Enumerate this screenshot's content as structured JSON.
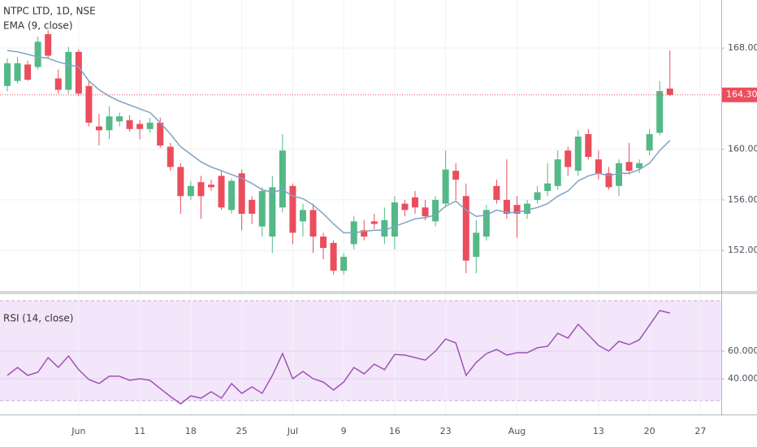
{
  "chart_data": [
    {
      "type": "candlestick",
      "title": "NTPC LTD, 1D, NSE",
      "categories": [
        null,
        null,
        null,
        null,
        null,
        null,
        null,
        "Jun",
        null,
        null,
        null,
        null,
        null,
        "11",
        null,
        null,
        null,
        null,
        "18",
        null,
        null,
        null,
        null,
        "25",
        null,
        null,
        null,
        null,
        "Jul",
        null,
        null,
        null,
        null,
        "9",
        null,
        null,
        null,
        null,
        "16",
        null,
        null,
        null,
        null,
        "23",
        null,
        null,
        null,
        null,
        null,
        null,
        "Aug",
        null,
        null,
        null,
        null,
        null,
        null,
        null,
        "13",
        null,
        null,
        null,
        null,
        "20",
        null,
        null,
        null,
        null,
        "27"
      ],
      "open": [
        165.0,
        165.4,
        166.7,
        166.5,
        169.1,
        165.6,
        164.7,
        167.7,
        165.0,
        161.8,
        161.5,
        162.2,
        162.3,
        162.0,
        161.6,
        162.1,
        160.2,
        158.6,
        156.3,
        157.4,
        157.2,
        157.9,
        155.2,
        158.1,
        156.0,
        153.9,
        153.1,
        155.4,
        157.1,
        154.3,
        155.2,
        153.1,
        152.6,
        150.4,
        152.5,
        153.6,
        154.3,
        153.1,
        153.1,
        155.7,
        156.2,
        155.4,
        154.3,
        155.7,
        158.3,
        156.3,
        151.5,
        153.1,
        157.1,
        156.0,
        155.6,
        154.9,
        156.0,
        156.7,
        157.1,
        159.9,
        158.3,
        161.2,
        159.2,
        158.1,
        157.1,
        159.0,
        158.5,
        159.9,
        161.3,
        164.8,
        null,
        null,
        null
      ],
      "high": [
        167.2,
        167.3,
        167.0,
        168.9,
        169.4,
        166.3,
        168.1,
        167.9,
        165.4,
        162.8,
        163.4,
        162.9,
        162.7,
        162.3,
        162.5,
        162.5,
        160.5,
        158.9,
        157.5,
        157.9,
        157.6,
        158.3,
        157.7,
        158.4,
        156.3,
        157.0,
        157.9,
        161.2,
        157.3,
        155.7,
        155.7,
        153.4,
        152.8,
        151.8,
        154.7,
        154.4,
        154.9,
        155.4,
        156.3,
        156.0,
        156.7,
        156.0,
        156.3,
        159.9,
        158.9,
        157.3,
        154.4,
        155.6,
        157.6,
        159.2,
        156.3,
        156.0,
        157.1,
        158.9,
        159.9,
        160.2,
        161.5,
        161.6,
        159.9,
        158.6,
        159.2,
        160.5,
        159.2,
        161.6,
        165.4,
        167.8,
        null,
        null,
        null
      ],
      "low": [
        164.6,
        165.2,
        165.4,
        166.3,
        167.2,
        164.4,
        164.4,
        164.2,
        161.8,
        160.3,
        160.8,
        161.8,
        161.4,
        160.8,
        161.3,
        160.1,
        158.3,
        154.9,
        156.0,
        154.5,
        156.7,
        155.2,
        154.9,
        153.6,
        154.1,
        153.1,
        151.8,
        155.0,
        152.5,
        153.1,
        151.8,
        151.3,
        150.1,
        150.1,
        152.1,
        152.8,
        153.7,
        152.5,
        152.1,
        154.7,
        154.9,
        154.4,
        153.9,
        155.4,
        156.0,
        150.2,
        150.2,
        152.8,
        155.7,
        154.5,
        153.0,
        154.5,
        155.7,
        156.3,
        156.8,
        157.9,
        157.9,
        159.2,
        157.6,
        156.8,
        156.3,
        158.0,
        158.1,
        159.5,
        161.1,
        164.2,
        null,
        null,
        null
      ],
      "close": [
        166.8,
        166.8,
        165.5,
        168.5,
        167.4,
        164.7,
        167.7,
        164.4,
        162.1,
        161.5,
        162.6,
        162.6,
        161.6,
        161.6,
        162.1,
        160.3,
        158.6,
        156.3,
        157.1,
        156.3,
        157.0,
        155.4,
        157.5,
        154.9,
        154.9,
        156.7,
        157.0,
        159.9,
        153.4,
        155.2,
        153.1,
        152.2,
        150.4,
        151.5,
        154.3,
        153.1,
        154.1,
        154.4,
        155.8,
        155.2,
        155.4,
        154.7,
        156.0,
        158.4,
        157.6,
        151.2,
        153.4,
        155.2,
        156.0,
        154.9,
        154.9,
        155.7,
        156.6,
        157.3,
        159.2,
        158.6,
        161.0,
        159.4,
        158.1,
        157.0,
        158.9,
        158.3,
        158.9,
        161.2,
        164.6,
        164.3,
        null,
        null,
        null
      ],
      "up_color": "#53b987",
      "down_color": "#eb4d5c",
      "series": [
        {
          "name": "EMA (9, close)",
          "color": "#7fa3c4",
          "values": [
            167.8,
            167.7,
            167.5,
            167.3,
            167.2,
            166.9,
            166.7,
            166.5,
            165.4,
            164.7,
            164.2,
            163.8,
            163.5,
            163.2,
            162.9,
            162.1,
            161.2,
            160.2,
            159.6,
            159.0,
            158.6,
            158.3,
            158.0,
            157.7,
            157.3,
            156.8,
            156.6,
            156.8,
            156.3,
            156.1,
            155.6,
            154.9,
            154.1,
            153.4,
            153.4,
            153.5,
            153.6,
            153.6,
            153.9,
            154.2,
            154.5,
            154.6,
            154.8,
            155.5,
            155.9,
            155.2,
            154.7,
            154.8,
            155.2,
            155.0,
            155.0,
            155.2,
            155.4,
            155.7,
            156.3,
            156.7,
            157.5,
            157.9,
            158.1,
            157.9,
            158.1,
            158.1,
            158.4,
            158.9,
            159.9,
            160.7,
            null,
            null,
            null
          ]
        }
      ],
      "price_line": {
        "value": 164.3,
        "label": "164.30"
      },
      "ylim": [
        148.8,
        171.8
      ],
      "yticks": [
        {
          "value": 152,
          "label": "152.00"
        },
        {
          "value": 156,
          "label": "156.00"
        },
        {
          "value": 160,
          "label": "160.00"
        },
        {
          "value": 168,
          "label": "168.00"
        }
      ],
      "grid": true
    },
    {
      "type": "line",
      "series": [
        {
          "name": "RSI (14, close)",
          "color": "#a052b3",
          "values": [
            42.4,
            48.2,
            42.4,
            44.7,
            55.3,
            48.2,
            56.5,
            46.5,
            39.4,
            36.5,
            41.8,
            41.8,
            38.8,
            40.0,
            38.8,
            32.9,
            27.1,
            21.8,
            27.6,
            25.9,
            30.6,
            25.9,
            36.5,
            29.4,
            34.1,
            29.4,
            42.4,
            58.2,
            40.0,
            45.3,
            40.0,
            37.6,
            31.8,
            37.6,
            48.2,
            43.5,
            50.6,
            46.5,
            57.6,
            57.1,
            55.3,
            53.5,
            60.0,
            68.8,
            65.9,
            42.4,
            51.8,
            58.2,
            61.2,
            57.1,
            58.8,
            58.8,
            62.4,
            63.5,
            72.9,
            69.4,
            79.4,
            71.8,
            64.1,
            60.0,
            67.1,
            64.7,
            68.2,
            78.8,
            89.4,
            87.6,
            null,
            null,
            null
          ]
        }
      ],
      "ylim": [
        14.1,
        101.2
      ],
      "yticks": [
        {
          "value": 40,
          "label": "40.0000"
        },
        {
          "value": 60,
          "label": "60.0000"
        }
      ],
      "grid": true
    }
  ]
}
